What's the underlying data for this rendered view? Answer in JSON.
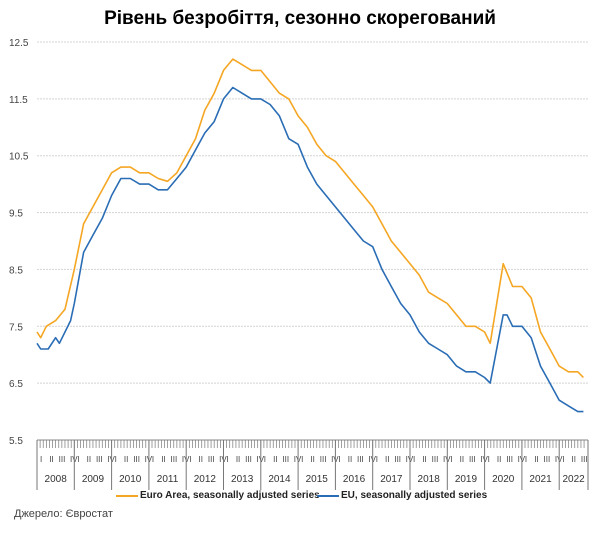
{
  "chart_data": {
    "type": "line",
    "title": "Рівень безробіття, сезонно скорегований",
    "xlabel": "",
    "ylabel": "",
    "ylim": [
      5.5,
      12.5
    ],
    "yticks": [
      "12.5",
      "11.5",
      "10.5",
      "9.5",
      "8.5",
      "7.5",
      "6.5",
      "5.5"
    ],
    "xlim": [
      2008.0,
      2022.75
    ],
    "years": [
      "2008",
      "2009",
      "2010",
      "2011",
      "2012",
      "2013",
      "2014",
      "2015",
      "2016",
      "2017",
      "2018",
      "2019",
      "2020",
      "2021",
      "2022"
    ],
    "quarter_labels": [
      "I",
      "II",
      "III",
      "IV"
    ],
    "grid": true,
    "legend_position": "bottom",
    "series": [
      {
        "name": "Euro Area, seasonally adjusted series",
        "color": "#f5a623",
        "x": [
          2008.0,
          2008.1,
          2008.25,
          2008.5,
          2008.75,
          2009.0,
          2009.25,
          2009.5,
          2009.75,
          2010.0,
          2010.25,
          2010.5,
          2010.75,
          2011.0,
          2011.25,
          2011.5,
          2011.75,
          2012.0,
          2012.25,
          2012.5,
          2012.75,
          2013.0,
          2013.25,
          2013.5,
          2013.75,
          2014.0,
          2014.25,
          2014.5,
          2014.75,
          2015.0,
          2015.25,
          2015.5,
          2015.75,
          2016.0,
          2016.25,
          2016.5,
          2016.75,
          2017.0,
          2017.25,
          2017.5,
          2017.75,
          2018.0,
          2018.25,
          2018.5,
          2018.75,
          2019.0,
          2019.25,
          2019.5,
          2019.75,
          2020.0,
          2020.15,
          2020.5,
          2020.75,
          2021.0,
          2021.25,
          2021.5,
          2021.75,
          2022.0,
          2022.25,
          2022.5,
          2022.65
        ],
        "y": [
          7.4,
          7.3,
          7.5,
          7.6,
          7.8,
          8.5,
          9.3,
          9.6,
          9.9,
          10.2,
          10.3,
          10.3,
          10.2,
          10.2,
          10.1,
          10.05,
          10.2,
          10.5,
          10.8,
          11.3,
          11.6,
          12.0,
          12.2,
          12.1,
          12.0,
          12.0,
          11.8,
          11.6,
          11.5,
          11.2,
          11.0,
          10.7,
          10.5,
          10.4,
          10.2,
          10.0,
          9.8,
          9.6,
          9.3,
          9.0,
          8.8,
          8.6,
          8.4,
          8.1,
          8.0,
          7.9,
          7.7,
          7.5,
          7.5,
          7.4,
          7.2,
          8.6,
          8.2,
          8.2,
          8.0,
          7.4,
          7.1,
          6.8,
          6.7,
          6.7,
          6.6
        ]
      },
      {
        "name": "EU, seasonally adjusted series",
        "color": "#2a6db5",
        "x": [
          2008.0,
          2008.1,
          2008.3,
          2008.5,
          2008.6,
          2008.9,
          2009.0,
          2009.25,
          2009.5,
          2009.75,
          2010.0,
          2010.25,
          2010.5,
          2010.75,
          2011.0,
          2011.25,
          2011.5,
          2011.75,
          2012.0,
          2012.25,
          2012.5,
          2012.75,
          2013.0,
          2013.25,
          2013.5,
          2013.75,
          2014.0,
          2014.25,
          2014.5,
          2014.75,
          2015.0,
          2015.25,
          2015.5,
          2015.75,
          2016.0,
          2016.25,
          2016.5,
          2016.75,
          2017.0,
          2017.25,
          2017.5,
          2017.75,
          2018.0,
          2018.25,
          2018.5,
          2018.75,
          2019.0,
          2019.25,
          2019.5,
          2019.75,
          2020.0,
          2020.15,
          2020.5,
          2020.6,
          2020.75,
          2021.0,
          2021.25,
          2021.5,
          2021.75,
          2022.0,
          2022.25,
          2022.5,
          2022.65
        ],
        "y": [
          7.2,
          7.1,
          7.1,
          7.3,
          7.2,
          7.6,
          7.9,
          8.8,
          9.1,
          9.4,
          9.8,
          10.1,
          10.1,
          10.0,
          10.0,
          9.9,
          9.9,
          10.1,
          10.3,
          10.6,
          10.9,
          11.1,
          11.5,
          11.7,
          11.6,
          11.5,
          11.5,
          11.4,
          11.2,
          10.8,
          10.7,
          10.3,
          10.0,
          9.8,
          9.6,
          9.4,
          9.2,
          9.0,
          8.9,
          8.5,
          8.2,
          7.9,
          7.7,
          7.4,
          7.2,
          7.1,
          7.0,
          6.8,
          6.7,
          6.7,
          6.6,
          6.5,
          7.7,
          7.7,
          7.5,
          7.5,
          7.3,
          6.8,
          6.5,
          6.2,
          6.1,
          6.0,
          6.0
        ]
      }
    ]
  },
  "source": "Джерело: Євростат"
}
